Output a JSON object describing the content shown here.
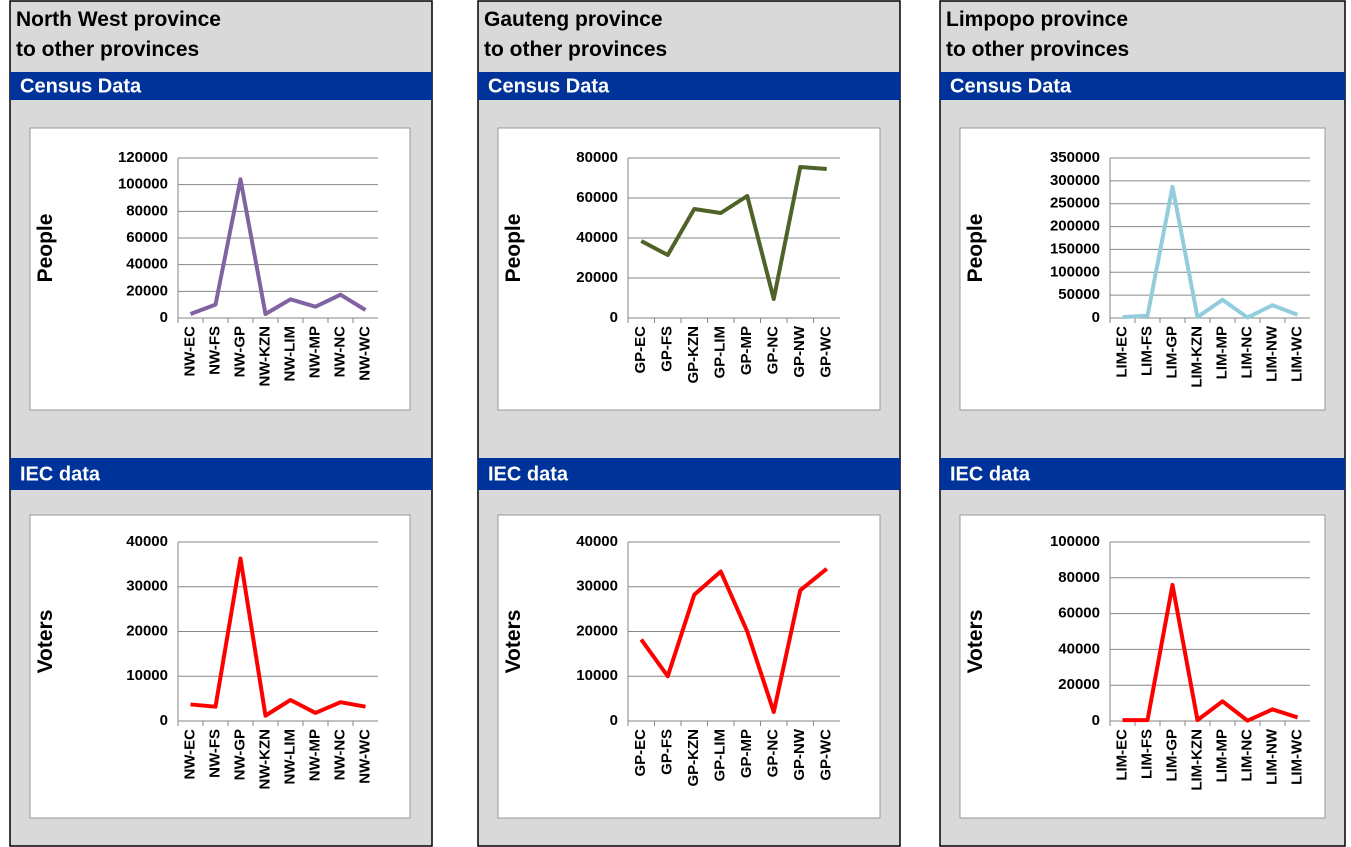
{
  "panels": [
    {
      "title_lines": [
        "North West province",
        "to other provinces"
      ],
      "headers": [
        "Census Data",
        "IEC data"
      ]
    },
    {
      "title_lines": [
        "Gauteng province",
        "to other provinces"
      ],
      "headers": [
        "Census Data",
        "IEC data"
      ]
    },
    {
      "title_lines": [
        "Limpopo province",
        "to other provinces"
      ],
      "headers": [
        "Census Data",
        "IEC data"
      ]
    }
  ],
  "chart_data": [
    {
      "type": "line",
      "ylabel": "People",
      "categories": [
        "NW-EC",
        "NW-FS",
        "NW-GP",
        "NW-KZN",
        "NW-LIM",
        "NW-MP",
        "NW-NC",
        "NW-WC"
      ],
      "values": [
        3000,
        10000,
        104000,
        3000,
        14000,
        8500,
        17500,
        6000
      ],
      "color": "#8064a2",
      "ylim": [
        0,
        120000
      ],
      "yticks": [
        0,
        20000,
        40000,
        60000,
        80000,
        100000,
        120000
      ],
      "grid": true
    },
    {
      "type": "line",
      "ylabel": "Voters",
      "categories": [
        "NW-EC",
        "NW-FS",
        "NW-GP",
        "NW-KZN",
        "NW-LIM",
        "NW-MP",
        "NW-NC",
        "NW-WC"
      ],
      "values": [
        3700,
        3200,
        36300,
        1200,
        4700,
        1800,
        4200,
        3200
      ],
      "color": "#ff0000",
      "ylim": [
        0,
        40000
      ],
      "yticks": [
        0,
        10000,
        20000,
        30000,
        40000
      ],
      "grid": true
    },
    {
      "type": "line",
      "ylabel": "People",
      "categories": [
        "GP-EC",
        "GP-FS",
        "GP-KZN",
        "GP-LIM",
        "GP-MP",
        "GP-NC",
        "GP-NW",
        "GP-WC"
      ],
      "values": [
        38500,
        31500,
        54500,
        52500,
        61000,
        9500,
        75500,
        74500
      ],
      "color": "#4f6228",
      "ylim": [
        0,
        80000
      ],
      "yticks": [
        0,
        20000,
        40000,
        60000,
        80000
      ],
      "grid": true
    },
    {
      "type": "line",
      "ylabel": "Voters",
      "categories": [
        "GP-EC",
        "GP-FS",
        "GP-KZN",
        "GP-LIM",
        "GP-MP",
        "GP-NC",
        "GP-NW",
        "GP-WC"
      ],
      "values": [
        18200,
        10000,
        28200,
        33400,
        20000,
        2000,
        29200,
        34000
      ],
      "color": "#ff0000",
      "ylim": [
        0,
        40000
      ],
      "yticks": [
        0,
        10000,
        20000,
        30000,
        40000
      ],
      "grid": true
    },
    {
      "type": "line",
      "ylabel": "People",
      "categories": [
        "LIM-EC",
        "LIM-FS",
        "LIM-GP",
        "LIM-KZN",
        "LIM-MP",
        "LIM-NC",
        "LIM-NW",
        "LIM-WC"
      ],
      "values": [
        2000,
        5000,
        287000,
        2000,
        40000,
        1000,
        28000,
        7000
      ],
      "color": "#93cddd",
      "ylim": [
        0,
        350000
      ],
      "yticks": [
        0,
        50000,
        100000,
        150000,
        200000,
        250000,
        300000,
        350000
      ],
      "grid": true
    },
    {
      "type": "line",
      "ylabel": "Voters",
      "categories": [
        "LIM-EC",
        "LIM-FS",
        "LIM-GP",
        "LIM-KZN",
        "LIM-MP",
        "LIM-NC",
        "LIM-NW",
        "LIM-WC"
      ],
      "values": [
        500,
        500,
        76000,
        500,
        11000,
        200,
        6500,
        2000
      ],
      "color": "#ff0000",
      "ylim": [
        0,
        100000
      ],
      "yticks": [
        0,
        20000,
        40000,
        60000,
        80000,
        100000
      ],
      "grid": true
    }
  ]
}
